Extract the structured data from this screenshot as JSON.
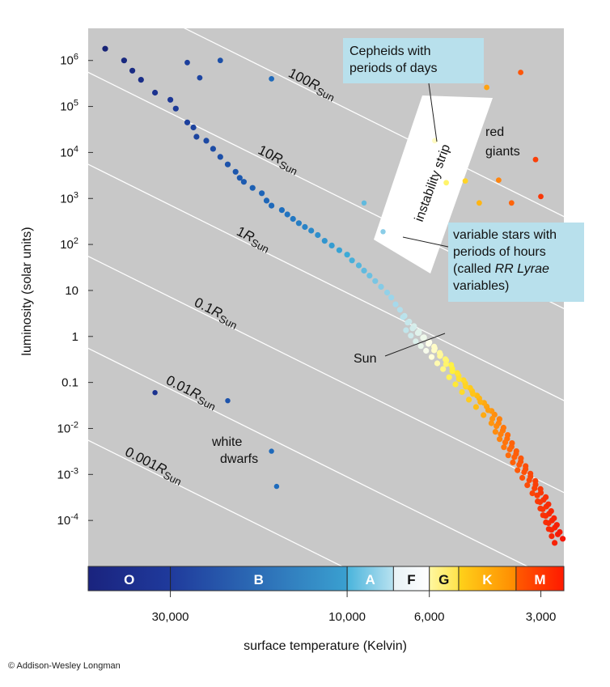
{
  "chart_data": {
    "type": "scatter",
    "xlabel": "surface temperature (Kelvin)",
    "ylabel": "luminosity (solar units)",
    "x_scale": "log-reversed",
    "y_scale": "log",
    "xlim": [
      50000,
      2600
    ],
    "ylim": [
      1e-05,
      5000000
    ],
    "x_ticks": [
      {
        "value": 30000,
        "label": "30,000"
      },
      {
        "value": 10000,
        "label": "10,000"
      },
      {
        "value": 6000,
        "label": "6,000"
      },
      {
        "value": 3000,
        "label": "3,000"
      }
    ],
    "y_ticks": [
      {
        "value": 1000000,
        "base": "10",
        "exp": "6"
      },
      {
        "value": 100000,
        "base": "10",
        "exp": "5"
      },
      {
        "value": 10000,
        "base": "10",
        "exp": "4"
      },
      {
        "value": 1000,
        "base": "10",
        "exp": "3"
      },
      {
        "value": 100,
        "base": "10",
        "exp": "2"
      },
      {
        "value": 10,
        "base": "10",
        "exp": ""
      },
      {
        "value": 1,
        "base": "1",
        "exp": ""
      },
      {
        "value": 0.1,
        "base": "0.1",
        "exp": ""
      },
      {
        "value": 0.01,
        "base": "10",
        "exp": "-2"
      },
      {
        "value": 0.001,
        "base": "10",
        "exp": "-3"
      },
      {
        "value": 0.0001,
        "base": "10",
        "exp": "-4"
      }
    ],
    "radius_lines": [
      {
        "radius": 100,
        "coef": "100",
        "sym": "R",
        "sub": "Sun"
      },
      {
        "radius": 10,
        "coef": "10",
        "sym": "R",
        "sub": "Sun"
      },
      {
        "radius": 1,
        "coef": "1",
        "sym": "R",
        "sub": "Sun"
      },
      {
        "radius": 0.1,
        "coef": "0.1",
        "sym": "R",
        "sub": "Sun"
      },
      {
        "radius": 0.01,
        "coef": "0.01",
        "sym": "R",
        "sub": "Sun"
      },
      {
        "radius": 0.001,
        "coef": "0.001",
        "sym": "R",
        "sub": "Sun"
      }
    ],
    "spectral_classes": [
      {
        "label": "O",
        "from": 50000,
        "to": 30000,
        "color_from": "#1a237e",
        "color_to": "#1f3a9c",
        "text_color": "#ffffff"
      },
      {
        "label": "B",
        "from": 30000,
        "to": 10000,
        "color_from": "#1f3a9c",
        "color_to": "#3aa0d0",
        "text_color": "#ffffff"
      },
      {
        "label": "A",
        "from": 10000,
        "to": 7500,
        "color_from": "#4ab4dc",
        "color_to": "#b8e2f0",
        "text_color": "#ffffff"
      },
      {
        "label": "F",
        "from": 7500,
        "to": 6000,
        "color_from": "#e8f2f6",
        "color_to": "#ffffff",
        "text_color": "#111111"
      },
      {
        "label": "G",
        "from": 6000,
        "to": 5000,
        "color_from": "#fff7a0",
        "color_to": "#ffe34a",
        "text_color": "#111111"
      },
      {
        "label": "K",
        "from": 5000,
        "to": 3500,
        "color_from": "#ffd21a",
        "color_to": "#ff8a00",
        "text_color": "#ffffff"
      },
      {
        "label": "M",
        "from": 3500,
        "to": 2600,
        "color_from": "#ff5a00",
        "color_to": "#ff1a00",
        "text_color": "#ffffff"
      }
    ],
    "main_sequence": [
      [
        45000,
        1800000
      ],
      [
        40000,
        1000000
      ],
      [
        38000,
        600000
      ],
      [
        36000,
        380000
      ],
      [
        33000,
        200000
      ],
      [
        30000,
        140000
      ],
      [
        29000,
        90000
      ],
      [
        27000,
        45000
      ],
      [
        26000,
        35000
      ],
      [
        25500,
        22000
      ],
      [
        24000,
        18000
      ],
      [
        23000,
        12000
      ],
      [
        22000,
        8000
      ],
      [
        21000,
        5500
      ],
      [
        20000,
        3800
      ],
      [
        19500,
        2800
      ],
      [
        19000,
        2300
      ],
      [
        18000,
        1700
      ],
      [
        17000,
        1300
      ],
      [
        16500,
        900
      ],
      [
        16000,
        700
      ],
      [
        15000,
        560
      ],
      [
        14500,
        450
      ],
      [
        14000,
        360
      ],
      [
        13500,
        290
      ],
      [
        13000,
        240
      ],
      [
        12500,
        200
      ],
      [
        12000,
        160
      ],
      [
        11500,
        120
      ],
      [
        11000,
        95
      ],
      [
        10500,
        75
      ],
      [
        10000,
        60
      ],
      [
        9700,
        45
      ],
      [
        9300,
        35
      ],
      [
        9000,
        27
      ],
      [
        8700,
        21
      ],
      [
        8400,
        16
      ],
      [
        8100,
        12
      ],
      [
        7800,
        9
      ],
      [
        7600,
        7
      ],
      [
        7400,
        5
      ],
      [
        7200,
        3.8
      ],
      [
        7000,
        2.8
      ],
      [
        6800,
        2.1
      ],
      [
        6600,
        1.6
      ],
      [
        6400,
        1.2
      ],
      [
        6200,
        0.95
      ],
      [
        6000,
        0.75
      ],
      [
        5800,
        0.55
      ],
      [
        5600,
        0.4
      ],
      [
        5400,
        0.3
      ],
      [
        5200,
        0.2
      ],
      [
        5000,
        0.14
      ],
      [
        4800,
        0.095
      ],
      [
        4600,
        0.065
      ],
      [
        4400,
        0.045
      ],
      [
        4200,
        0.03
      ],
      [
        4000,
        0.02
      ],
      [
        3900,
        0.013
      ],
      [
        3800,
        0.009
      ],
      [
        3700,
        0.006
      ],
      [
        3600,
        0.004
      ],
      [
        3500,
        0.0028
      ],
      [
        3400,
        0.0019
      ],
      [
        3300,
        0.0013
      ],
      [
        3200,
        0.0009
      ],
      [
        3100,
        0.0006
      ],
      [
        3000,
        0.0004
      ],
      [
        2950,
        0.00028
      ],
      [
        2900,
        0.0002
      ],
      [
        2850,
        0.00014
      ],
      [
        2800,
        0.0001
      ],
      [
        2750,
        7e-05
      ],
      [
        2700,
        5e-05
      ]
    ],
    "supergiants": [
      [
        27000,
        900000
      ],
      [
        22000,
        1000000
      ],
      [
        25000,
        420000
      ],
      [
        16000,
        400000
      ]
    ],
    "red_giants": [
      [
        5800,
        18000
      ],
      [
        5400,
        2200
      ],
      [
        4800,
        2400
      ],
      [
        4200,
        260000
      ],
      [
        3400,
        550000
      ],
      [
        3100,
        7000
      ],
      [
        3000,
        1100
      ],
      [
        3000,
        250
      ],
      [
        3600,
        800
      ],
      [
        3900,
        2500
      ],
      [
        4400,
        800
      ]
    ],
    "instability_strip_stars": [
      [
        9000,
        800
      ],
      [
        8000,
        190
      ]
    ],
    "white_dwarfs": [
      [
        33000,
        0.06
      ],
      [
        21000,
        0.04
      ],
      [
        16000,
        0.0032
      ],
      [
        15500,
        0.00055
      ]
    ]
  },
  "annotations": {
    "cepheids": "Cepheids with periods of days",
    "cepheids_lines": [
      "Cepheids with",
      "periods of days"
    ],
    "instability_strip": "instability strip",
    "red_giants_lines": [
      "red",
      "giants"
    ],
    "rr_lyrae_lines": [
      {
        "text": "variable stars with"
      },
      {
        "text": "periods of hours"
      },
      {
        "pre": "(called ",
        "ital": "RR Lyrae",
        "post": ""
      },
      {
        "text": "variables)"
      }
    ],
    "sun": "Sun",
    "white_dwarfs_lines": [
      "white",
      "dwarfs"
    ]
  },
  "colors": {
    "plot_background": "#c8c8c8",
    "callout_fill": "#b8e0ec",
    "radius_line": "#ffffff"
  },
  "copyright": "© Addison-Wesley Longman"
}
